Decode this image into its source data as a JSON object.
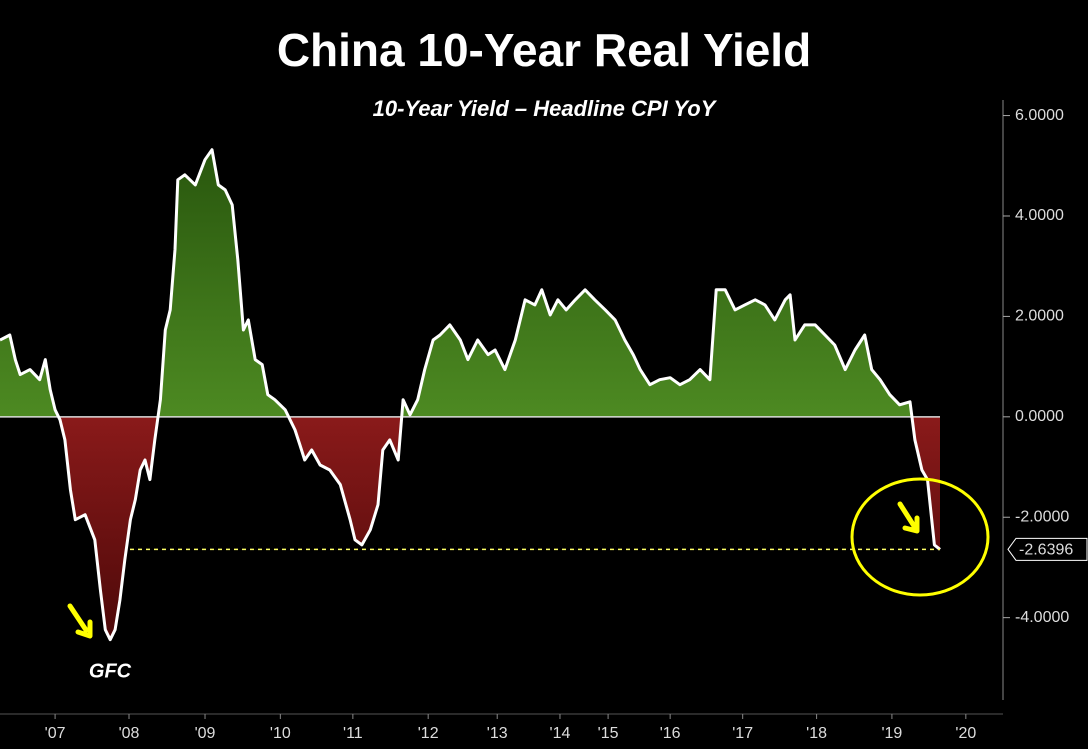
{
  "chart_data": {
    "type": "area",
    "title": "China 10-Year Real Yield",
    "subtitle": "10-Year Yield – Headline CPI YoY",
    "annotations": [
      "GFC"
    ],
    "x": [
      2006.71,
      2006.85,
      2006.93,
      2007.0,
      2007.14,
      2007.28,
      2007.36,
      2007.43,
      2007.5,
      2007.57,
      2007.64,
      2007.72,
      2007.79,
      2007.93,
      2008.07,
      2008.15,
      2008.22,
      2008.29,
      2008.36,
      2008.43,
      2008.5,
      2008.58,
      2008.65,
      2008.72,
      2008.79,
      2008.86,
      2008.93,
      2009.01,
      2009.08,
      2009.15,
      2009.22,
      2009.26,
      2009.36,
      2009.51,
      2009.65,
      2009.75,
      2009.84,
      2009.94,
      2010.04,
      2010.12,
      2010.2,
      2010.27,
      2010.37,
      2010.47,
      2010.55,
      2010.65,
      2010.8,
      2010.94,
      2011.01,
      2011.08,
      2011.18,
      2011.3,
      2011.44,
      2011.59,
      2011.73,
      2011.8,
      2011.9,
      2012.02,
      2012.13,
      2012.2,
      2012.3,
      2012.42,
      2012.49,
      2012.59,
      2012.7,
      2012.8,
      2012.92,
      2013.02,
      2013.16,
      2013.31,
      2013.42,
      2013.56,
      2013.71,
      2013.81,
      2013.95,
      2014.1,
      2014.24,
      2014.38,
      2014.48,
      2014.6,
      2014.71,
      2014.83,
      2014.96,
      2015.1,
      2015.24,
      2015.39,
      2015.53,
      2015.67,
      2015.79,
      2015.89,
      2016.03,
      2016.17,
      2016.32,
      2016.46,
      2016.6,
      2016.75,
      2016.89,
      2016.98,
      2017.11,
      2017.25,
      2017.39,
      2017.54,
      2017.68,
      2017.82,
      2017.97,
      2018.04,
      2018.11,
      2018.25,
      2018.4,
      2018.54,
      2018.68,
      2018.83,
      2018.97,
      2019.11,
      2019.21,
      2019.33,
      2019.47,
      2019.61,
      2019.76,
      2019.83,
      2019.93,
      2020.01,
      2020.11,
      2020.19
    ],
    "series": [
      {
        "name": "10-Year Yield – Headline CPI YoY",
        "color": "#ffffff",
        "values": [
          1.53,
          1.63,
          1.14,
          0.84,
          0.94,
          0.74,
          1.14,
          0.54,
          0.14,
          -0.06,
          -0.46,
          -1.45,
          -2.05,
          -1.95,
          -2.45,
          -3.45,
          -4.24,
          -4.44,
          -4.24,
          -3.65,
          -2.85,
          -2.05,
          -1.65,
          -1.06,
          -0.86,
          -1.25,
          -0.46,
          0.34,
          1.73,
          2.13,
          3.33,
          4.72,
          4.82,
          4.62,
          5.12,
          5.32,
          4.62,
          4.52,
          4.22,
          3.13,
          1.73,
          1.93,
          1.14,
          1.04,
          0.44,
          0.34,
          0.14,
          -0.26,
          -0.56,
          -0.86,
          -0.66,
          -0.96,
          -1.06,
          -1.35,
          -2.05,
          -2.45,
          -2.55,
          -2.25,
          -1.75,
          -0.66,
          -0.46,
          -0.86,
          0.34,
          0.04,
          0.34,
          0.94,
          1.53,
          1.63,
          1.83,
          1.53,
          1.14,
          1.53,
          1.24,
          1.33,
          0.94,
          1.53,
          2.33,
          2.23,
          2.53,
          2.03,
          2.33,
          2.13,
          2.33,
          2.53,
          2.33,
          2.13,
          1.93,
          1.53,
          1.24,
          0.94,
          0.64,
          0.74,
          0.78,
          0.64,
          0.74,
          0.94,
          0.74,
          2.53,
          2.53,
          2.13,
          2.23,
          2.33,
          2.23,
          1.93,
          2.33,
          2.43,
          1.53,
          1.83,
          1.83,
          1.63,
          1.43,
          0.94,
          1.33,
          1.63,
          0.94,
          0.74,
          0.44,
          0.24,
          0.3,
          -0.46,
          -1.06,
          -1.25,
          -2.55,
          -2.6396
        ]
      }
    ],
    "positive_color": "#3f7a18",
    "negative_color": "#7a1414",
    "xlim": [
      2006.71,
      2021.05
    ],
    "ylim": [
      -5.64,
      6.31
    ],
    "xticks": [
      {
        "value": 2007.5,
        "label": "'07"
      },
      {
        "value": 2008.56,
        "label": "'08"
      },
      {
        "value": 2009.65,
        "label": "'09"
      },
      {
        "value": 2010.73,
        "label": "'10"
      },
      {
        "value": 2011.77,
        "label": "'11"
      },
      {
        "value": 2012.85,
        "label": "'12"
      },
      {
        "value": 2013.84,
        "label": "'13"
      },
      {
        "value": 2014.74,
        "label": "'14"
      },
      {
        "value": 2015.43,
        "label": "'15"
      },
      {
        "value": 2016.32,
        "label": "'16"
      },
      {
        "value": 2017.36,
        "label": "'17"
      },
      {
        "value": 2018.42,
        "label": "'18"
      },
      {
        "value": 2019.5,
        "label": "'19"
      },
      {
        "value": 2020.56,
        "label": "'20"
      }
    ],
    "yticks": [
      {
        "value": 6,
        "label": "6.0000"
      },
      {
        "value": 4,
        "label": "4.0000"
      },
      {
        "value": 2,
        "label": "2.0000"
      },
      {
        "value": 0,
        "label": "0.0000"
      },
      {
        "value": -2,
        "label": "-2.0000"
      },
      {
        "value": -4,
        "label": "-4.0000"
      }
    ],
    "grid": false
  }
}
